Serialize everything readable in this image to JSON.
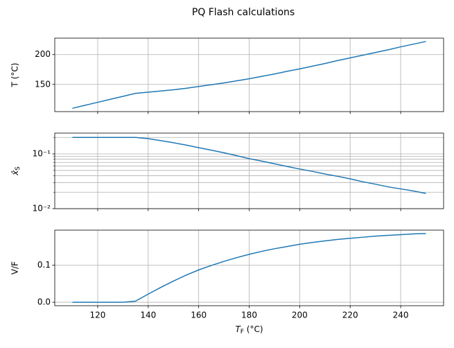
{
  "title": "PQ Flash calculations",
  "chart_data": [
    {
      "type": "line",
      "ylabel": "T (°C)",
      "x": [
        110,
        115,
        120,
        125,
        130,
        135,
        140,
        145,
        150,
        155,
        160,
        165,
        170,
        175,
        180,
        185,
        190,
        195,
        200,
        205,
        210,
        215,
        220,
        225,
        230,
        235,
        240,
        245,
        250
      ],
      "series": [
        {
          "color": "#1f77b4",
          "values": [
            110,
            115,
            120,
            125,
            130,
            135,
            137,
            139,
            141,
            143.5,
            146.5,
            149.5,
            152.5,
            156,
            159.5,
            163.5,
            167.5,
            172,
            176,
            180.5,
            185,
            190,
            194.5,
            199,
            203.5,
            208,
            213,
            217.5,
            222
          ]
        }
      ],
      "xlim": [
        103,
        257
      ],
      "xticks": [
        120,
        140,
        160,
        180,
        200,
        220,
        240
      ],
      "ylim": [
        104.4,
        227.6
      ],
      "yticks": [
        150,
        200
      ],
      "grid": true
    },
    {
      "type": "line",
      "ylabel": [
        "x̂",
        "S"
      ],
      "yscale": "log",
      "x": [
        110,
        115,
        120,
        125,
        130,
        135,
        140,
        145,
        150,
        155,
        160,
        165,
        170,
        175,
        180,
        185,
        190,
        195,
        200,
        205,
        210,
        215,
        220,
        225,
        230,
        235,
        240,
        245,
        250
      ],
      "series": [
        {
          "color": "#1f77b4",
          "values": [
            0.2,
            0.2,
            0.2,
            0.2,
            0.2,
            0.2,
            0.19,
            0.175,
            0.16,
            0.145,
            0.13,
            0.117,
            0.105,
            0.093,
            0.082,
            0.074,
            0.066,
            0.059,
            0.053,
            0.048,
            0.043,
            0.039,
            0.035,
            0.031,
            0.028,
            0.025,
            0.023,
            0.021,
            0.019
          ]
        }
      ],
      "xlim": [
        103,
        257
      ],
      "xticks": [
        120,
        140,
        160,
        180,
        200,
        220,
        240
      ],
      "ylim": [
        0.01,
        0.24
      ],
      "yticks": [
        {
          "value": 0.01,
          "label": "10⁻²"
        },
        {
          "value": 0.1,
          "label": "10⁻¹"
        }
      ],
      "yminorticks": [
        0.02,
        0.03,
        0.04,
        0.05,
        0.06,
        0.07,
        0.08,
        0.09,
        0.2
      ],
      "grid": true
    },
    {
      "type": "line",
      "ylabel": "V/F",
      "xlabel": [
        "T",
        "F",
        " (°C)"
      ],
      "x": [
        110,
        115,
        120,
        125,
        130,
        135,
        140,
        145,
        150,
        155,
        160,
        165,
        170,
        175,
        180,
        185,
        190,
        195,
        200,
        205,
        210,
        215,
        220,
        225,
        230,
        235,
        240,
        245,
        250
      ],
      "series": [
        {
          "color": "#1f77b4",
          "values": [
            0,
            0,
            0,
            0,
            0,
            0.003,
            0.022,
            0.04,
            0.057,
            0.073,
            0.087,
            0.099,
            0.11,
            0.12,
            0.129,
            0.137,
            0.144,
            0.15,
            0.156,
            0.161,
            0.165,
            0.169,
            0.172,
            0.175,
            0.178,
            0.18,
            0.182,
            0.184,
            0.185
          ]
        }
      ],
      "xlim": [
        103,
        257
      ],
      "xticks": [
        120,
        140,
        160,
        180,
        200,
        220,
        240
      ],
      "ylim": [
        -0.00925,
        0.194
      ],
      "yticks": [
        {
          "value": 0,
          "label": "0.0"
        },
        0.1
      ],
      "grid": true
    }
  ]
}
